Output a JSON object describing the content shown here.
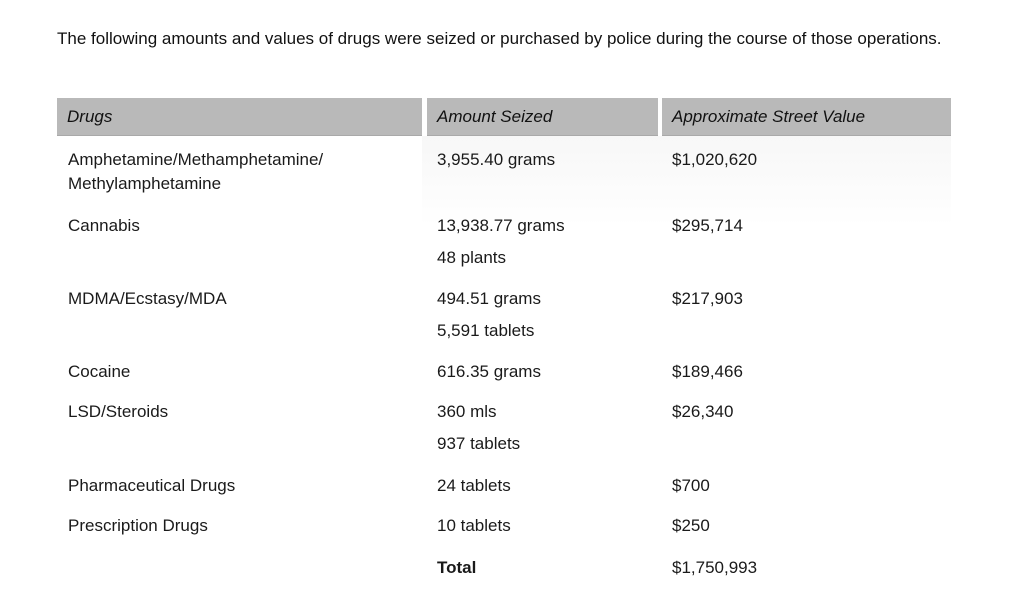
{
  "intro": "The following amounts and values of drugs were seized or purchased by police during the course of those operations.",
  "table": {
    "headers": [
      "Drugs",
      "Amount Seized",
      "Approximate Street Value"
    ],
    "rows": [
      {
        "drug_lines": [
          "Amphetamine/Methamphetamine/",
          "Methylamphetamine"
        ],
        "amount_lines": [
          "3,955.40 grams"
        ],
        "value": "$1,020,620"
      },
      {
        "drug_lines": [
          "Cannabis"
        ],
        "amount_lines": [
          "13,938.77 grams",
          "48 plants"
        ],
        "value": "$295,714"
      },
      {
        "drug_lines": [
          "MDMA/Ecstasy/MDA"
        ],
        "amount_lines": [
          "494.51 grams",
          "5,591 tablets"
        ],
        "value": "$217,903"
      },
      {
        "drug_lines": [
          "Cocaine"
        ],
        "amount_lines": [
          "616.35 grams"
        ],
        "value": "$189,466"
      },
      {
        "drug_lines": [
          "LSD/Steroids"
        ],
        "amount_lines": [
          "360 mls",
          "937 tablets"
        ],
        "value": "$26,340"
      },
      {
        "drug_lines": [
          "Pharmaceutical Drugs"
        ],
        "amount_lines": [
          "24 tablets"
        ],
        "value": "$700"
      },
      {
        "drug_lines": [
          "Prescription Drugs"
        ],
        "amount_lines": [
          "10 tablets"
        ],
        "value": "$250"
      }
    ],
    "total_label": "Total",
    "total_value": "$1,750,993"
  }
}
